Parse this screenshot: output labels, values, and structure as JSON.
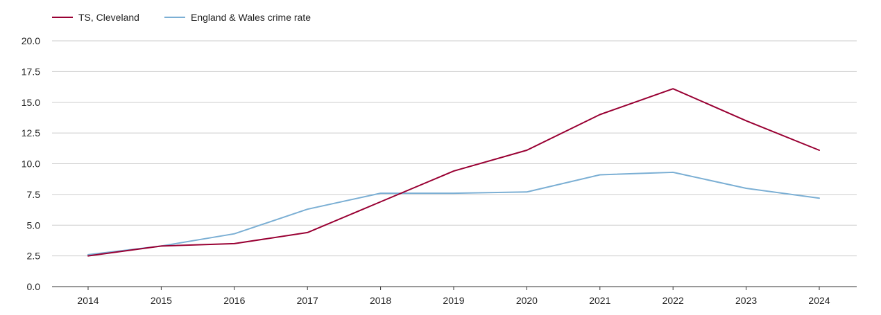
{
  "chart_data": {
    "type": "line",
    "title": "",
    "xlabel": "",
    "ylabel": "",
    "categories": [
      "2014",
      "2015",
      "2016",
      "2017",
      "2018",
      "2019",
      "2020",
      "2021",
      "2022",
      "2023",
      "2024"
    ],
    "ylim": [
      0,
      20
    ],
    "yticks": [
      "0.0",
      "2.5",
      "5.0",
      "7.5",
      "10.0",
      "12.5",
      "15.0",
      "17.5",
      "20.0"
    ],
    "grid": true,
    "legend_position": "top-left",
    "series": [
      {
        "name": "TS, Cleveland",
        "color": "#990033",
        "values": [
          2.5,
          3.3,
          3.5,
          4.4,
          6.9,
          9.4,
          11.1,
          14.0,
          16.1,
          13.5,
          11.1
        ]
      },
      {
        "name": "England & Wales crime rate",
        "color": "#7bafd4",
        "values": [
          2.6,
          3.3,
          4.3,
          6.3,
          7.6,
          7.6,
          7.7,
          9.1,
          9.3,
          8.0,
          7.2
        ]
      }
    ]
  }
}
